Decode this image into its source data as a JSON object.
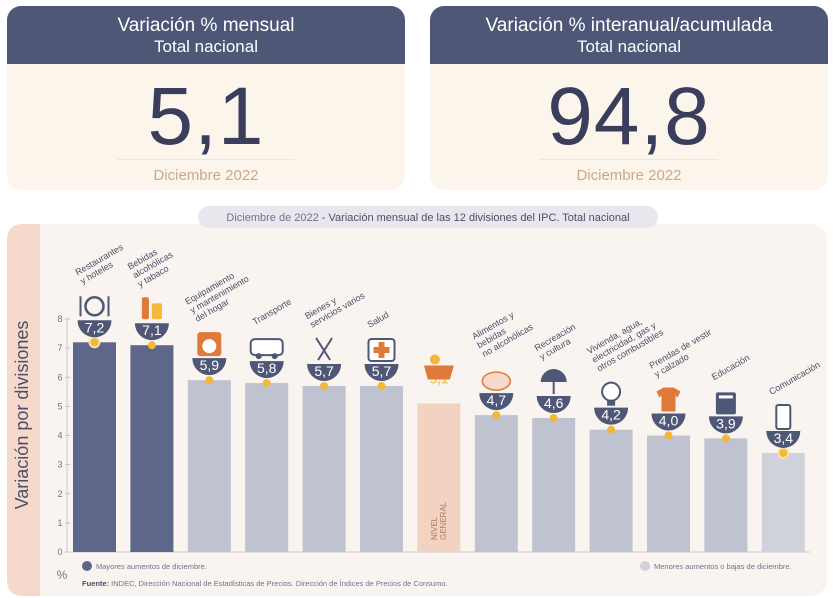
{
  "cards": [
    {
      "title": "Variación % mensual",
      "subtitle": "Total nacional",
      "value": "5,1",
      "period": "Diciembre 2022"
    },
    {
      "title": "Variación % interanual/acumulada",
      "subtitle": "Total nacional",
      "value": "94,8",
      "period": "Diciembre 2022"
    }
  ],
  "chart_data": {
    "type": "bar",
    "title_bold": "Diciembre de 2022",
    "title_rest": " - Variación mensual de las 12 divisiones del IPC. Total nacional",
    "ylabel": "Variación por divisiones",
    "yunit": "%",
    "ylim": [
      0,
      8
    ],
    "yticks": [
      0,
      1,
      2,
      3,
      4,
      5,
      6,
      7,
      8
    ],
    "categories": [
      [
        "Restaurantes",
        "y hoteles"
      ],
      [
        "Bebidas",
        "alcohólicas",
        "y tabaco"
      ],
      [
        "Equipamiento",
        "y mantenimiento",
        "del hogar"
      ],
      [
        "Transporte"
      ],
      [
        "Bienes y",
        "servicios varios"
      ],
      [
        "Salud"
      ],
      [
        "NIVEL",
        "GENERAL"
      ],
      [
        "Alimentos y",
        "bebidas",
        "no alcohólicas"
      ],
      [
        "Recreación",
        "y cultura"
      ],
      [
        "Vivienda, agua,",
        "electricidad, gas y",
        "otros combustibles"
      ],
      [
        "Prendas de vestir",
        "y calzado"
      ],
      [
        "Educación"
      ],
      [
        "Comunicación"
      ]
    ],
    "values": [
      7.2,
      7.1,
      5.9,
      5.8,
      5.7,
      5.7,
      5.1,
      4.7,
      4.6,
      4.2,
      4.0,
      3.9,
      3.4
    ],
    "labels": [
      "7,2",
      "7,1",
      "5,9",
      "5,8",
      "5,7",
      "5,7",
      "5,1",
      "4,7",
      "4,6",
      "4,2",
      "4,0",
      "3,9",
      "3,4"
    ],
    "groups": [
      "high",
      "high",
      "mid",
      "mid",
      "mid",
      "mid",
      "general",
      "mid",
      "mid",
      "mid",
      "mid",
      "mid",
      "low"
    ],
    "icons": [
      "utensils-icon",
      "bottles-icon",
      "washing-machine-icon",
      "bus-icon",
      "scissors-icon",
      "medical-kit-icon",
      "shopping-basket-icon",
      "chicken-icon",
      "umbrella-icon",
      "light-bulb-icon",
      "shirt-icon",
      "books-icon",
      "phone-icon"
    ],
    "legend_high": "Mayores aumentos de diciembre.",
    "legend_low": "Menores aumentos o bajas de diciembre.",
    "source_label": "Fuente:",
    "source_text": " INDEC, Dirección Nacional de Estadísticas de Precios. Dirección de Índices de Precios de Consumo.",
    "colors": {
      "high": "#5e6789",
      "mid": "#bfc3cf",
      "low": "#cfd2da",
      "general": "#f2d3c1",
      "general_label": "#f2c84b",
      "marker": "#f3b739",
      "bubble": "#4f5777",
      "panel": "#f9f4ef",
      "band": "#f6d9cb"
    }
  }
}
